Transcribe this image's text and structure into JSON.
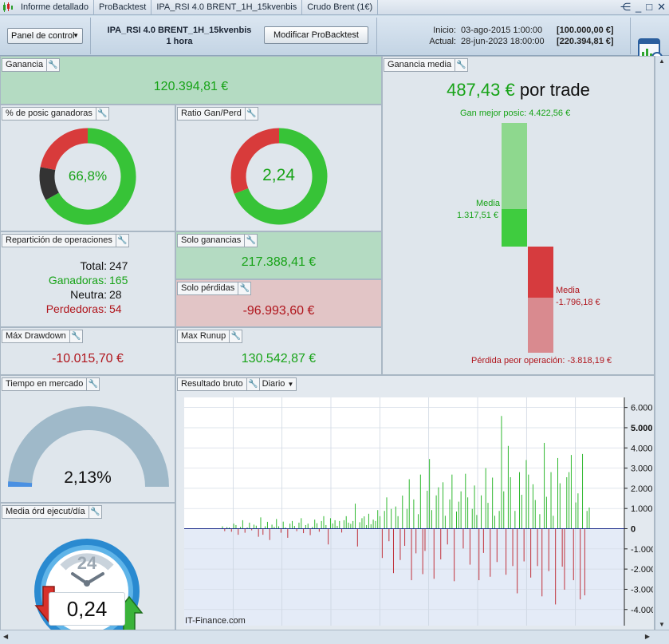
{
  "tabs": [
    "Informe detallado",
    "ProBacktest",
    "IPA_RSI 4.0 BRENT_1H_15kvenbis",
    "Crudo Brent (1€)"
  ],
  "toolbar": {
    "panel_select": "Panel de control",
    "strategy_name": "IPA_RSI 4.0 BRENT_1H_15kvenbis",
    "timeframe": "1 hora",
    "modify_button": "Modificar ProBacktest",
    "start_label": "Inicio:",
    "start_date": "03-ago-2015 1:00:00",
    "start_amount": "[100.000,00 €]",
    "current_label": "Actual:",
    "current_date": "28-jun-2023 18:00:00",
    "current_amount": "[220.394,81 €]"
  },
  "ganancia": {
    "title": "Ganancia",
    "value": "120.394,81 €"
  },
  "pct_winning": {
    "title": "% de posic ganadoras",
    "value": "66,8%",
    "fractions": {
      "win": 0.668,
      "neutral": 0.113,
      "loss": 0.219
    }
  },
  "ratio": {
    "title": "Ratio Gan/Perd",
    "value": "2,24",
    "fractions": {
      "win": 0.691,
      "loss": 0.309
    }
  },
  "ganancia_media": {
    "title": "Ganancia media",
    "value": "487,43 €",
    "suffix": "por trade",
    "best_label": "Gan mejor posic: 4.422,56 €",
    "media_win_label": "Media",
    "media_win_value": "1.317,51 €",
    "media_loss_label": "Media",
    "media_loss_value": "-1.796,18 €",
    "worst_label": "Pérdida peor operación: -3.818,19 €",
    "best_value": 4422.56,
    "media_win": 1317.51,
    "media_loss": -1796.18,
    "worst_value": -3818.19
  },
  "reparticion": {
    "title": "Repartición de operaciones",
    "total_label": "Total:",
    "total": "247",
    "win_label": "Ganadoras:",
    "win": "165",
    "neutral_label": "Neutra:",
    "neutral": "28",
    "loss_label": "Perdedoras:",
    "loss": "54"
  },
  "solo_ganancias": {
    "title": "Solo ganancias",
    "value": "217.388,41 €"
  },
  "solo_perdidas": {
    "title": "Solo pérdidas",
    "value": "-96.993,60 €"
  },
  "max_drawdown": {
    "title": "Máx Drawdown",
    "value": "-10.015,70 €"
  },
  "max_runup": {
    "title": "Max Runup",
    "value": "130.542,87 €"
  },
  "tiempo_mercado": {
    "title": "Tiempo en mercado",
    "value": "2,13%",
    "fraction": 0.0213
  },
  "resultado_bruto": {
    "title": "Resultado bruto",
    "period": "Diario",
    "watermark": "IT-Finance.com"
  },
  "media_ord": {
    "title": "Media órd ejecut/día",
    "value": "0,24",
    "clock_label": "24"
  },
  "colors": {
    "win": "#37c337",
    "neutral": "#333333",
    "loss": "#d83b3b",
    "bar_win": "#2fb82f",
    "bar_loss": "#c0303a"
  },
  "chart_data": {
    "type": "bar",
    "ylim": [
      -4800,
      6500
    ],
    "yticks": [
      "6.000",
      "5.000",
      "4.000",
      "3.000",
      "2.000",
      "1.000",
      "0",
      "-1.000",
      "-2.000",
      "-3.000",
      "-4.000"
    ],
    "ytick_values": [
      6000,
      5000,
      4000,
      3000,
      2000,
      1000,
      0,
      -1000,
      -2000,
      -3000,
      -4000
    ],
    "bold_ticks": [
      "5.000",
      "0"
    ],
    "values": [
      120,
      -120,
      80,
      60,
      -150,
      250,
      180,
      -300,
      90,
      420,
      -200,
      60,
      300,
      -80,
      200,
      150,
      -400,
      560,
      -300,
      120,
      340,
      -560,
      200,
      90,
      480,
      120,
      -200,
      350,
      60,
      -450,
      250,
      380,
      140,
      -120,
      300,
      520,
      -220,
      180,
      250,
      -320,
      90,
      450,
      270,
      -150,
      380,
      620,
      180,
      -780,
      520,
      260,
      420,
      140,
      380,
      -190,
      420,
      620,
      300,
      240,
      380,
      1240,
      -880,
      320,
      520,
      610,
      180,
      740,
      220,
      450,
      380,
      920,
      620,
      -1450,
      880,
      1550,
      -620,
      980,
      -2200,
      1100,
      620,
      -1550,
      1640,
      -850,
      980,
      2450,
      -2550,
      1450,
      -1220,
      720,
      2680,
      -2250,
      -1100,
      1880,
      3450,
      920,
      -2480,
      1650,
      2050,
      -1520,
      2300,
      640,
      -780,
      1450,
      2680,
      -2600,
      850,
      1340,
      1850,
      -980,
      2720,
      1550,
      -1780,
      980,
      2140,
      680,
      -2550,
      1650,
      -1200,
      3000,
      1280,
      -2380,
      2530,
      640,
      -1650,
      880,
      5580,
      1850,
      -2280,
      4100,
      2550,
      -1850,
      880,
      -3200,
      2800,
      1680,
      -1620,
      3400,
      2680,
      -2420,
      2200,
      1420,
      -1850,
      720,
      -3350,
      4250,
      1580,
      -2100,
      2800,
      640,
      -3750,
      3500,
      2250,
      -1880,
      -3020,
      2550,
      2800,
      3650,
      -2550,
      1300,
      1750,
      -3500,
      3700,
      -3300,
      880,
      1050
    ]
  }
}
